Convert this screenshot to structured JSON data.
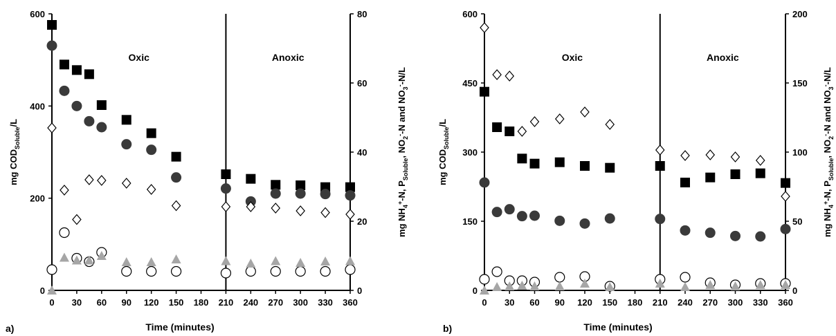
{
  "chart_data": [
    {
      "type": "scatter",
      "panel_label": "a)",
      "xlabel": "Time (minutes)",
      "ylabel_left": "mg COD_Soluble/L",
      "ylabel_right": "mg NH4+-N, P_Soluble, NO2--N and NO3--N/L",
      "xlim": [
        0,
        360
      ],
      "x_ticks": [
        0,
        30,
        60,
        90,
        120,
        150,
        180,
        210,
        240,
        270,
        300,
        330,
        360
      ],
      "ylim_left": [
        0,
        600
      ],
      "y_ticks_left": [
        0,
        200,
        400,
        600
      ],
      "ylim_right": [
        0,
        80
      ],
      "y_ticks_right": [
        0,
        20,
        40,
        60,
        80
      ],
      "phase_divider_x": 210,
      "phases": [
        {
          "label": "Oxic",
          "x": 105
        },
        {
          "label": "Anoxic",
          "x": 285
        }
      ],
      "series": [
        {
          "marker": "square",
          "axis": "left",
          "x": [
            0,
            15,
            30,
            45,
            60,
            90,
            120,
            150,
            210,
            240,
            270,
            300,
            330,
            360
          ],
          "y": [
            576,
            490,
            478,
            469,
            402,
            370,
            341,
            290,
            252,
            242,
            229,
            228,
            224,
            224
          ]
        },
        {
          "marker": "circle-filled",
          "axis": "left",
          "x": [
            0,
            15,
            30,
            45,
            60,
            90,
            120,
            150,
            210,
            240,
            270,
            300,
            330,
            360
          ],
          "y": [
            531,
            433,
            400,
            367,
            354,
            317,
            305,
            245,
            221,
            193,
            210,
            210,
            209,
            206
          ]
        },
        {
          "marker": "diamond-open",
          "axis": "right",
          "x": [
            0,
            15,
            30,
            45,
            60,
            90,
            120,
            150,
            210,
            240,
            270,
            300,
            330,
            360
          ],
          "y": [
            47,
            29,
            20.5,
            32,
            31.8,
            31,
            29.2,
            24.5,
            24.2,
            24.2,
            23.8,
            23,
            22.5,
            22
          ]
        },
        {
          "marker": "circle-open",
          "axis": "right",
          "x": [
            0,
            15,
            30,
            45,
            60,
            90,
            120,
            150,
            210,
            240,
            270,
            300,
            330,
            360
          ],
          "y": [
            6,
            16.7,
            9.3,
            8.3,
            11,
            5.5,
            5.5,
            5.5,
            5,
            5.5,
            5.5,
            5.5,
            5.5,
            6
          ]
        },
        {
          "marker": "triangle-gray",
          "axis": "right",
          "x": [
            0,
            15,
            30,
            45,
            60,
            90,
            120,
            150,
            210,
            240,
            270,
            300,
            330,
            360
          ],
          "y": [
            0,
            9.5,
            8.7,
            8.7,
            10,
            8.2,
            8.2,
            9,
            8.5,
            7.8,
            8.5,
            8,
            8.4,
            8.5
          ]
        }
      ]
    },
    {
      "type": "scatter",
      "panel_label": "b)",
      "xlabel": "Time (minutes)",
      "ylabel_left": "mg COD_Soluble/L",
      "ylabel_right": "mg NH4+-N, P_Soluble, NO2--N and NO3--N/L",
      "xlim": [
        0,
        360
      ],
      "x_ticks": [
        0,
        30,
        60,
        90,
        120,
        150,
        180,
        210,
        240,
        270,
        300,
        330,
        360
      ],
      "ylim_left": [
        0,
        600
      ],
      "y_ticks_left": [
        0,
        150,
        300,
        450,
        600
      ],
      "ylim_right": [
        0,
        200
      ],
      "y_ticks_right": [
        0,
        50,
        100,
        150,
        200
      ],
      "phase_divider_x": 210,
      "phases": [
        {
          "label": "Oxic",
          "x": 105
        },
        {
          "label": "Anoxic",
          "x": 285
        }
      ],
      "series": [
        {
          "marker": "square",
          "axis": "left",
          "x": [
            0,
            15,
            30,
            45,
            60,
            90,
            120,
            150,
            210,
            240,
            270,
            300,
            330,
            360
          ],
          "y": [
            431,
            354,
            345,
            286,
            275,
            278,
            270,
            266,
            270,
            234,
            245,
            252,
            254,
            233
          ]
        },
        {
          "marker": "circle-filled",
          "axis": "left",
          "x": [
            0,
            15,
            30,
            45,
            60,
            90,
            120,
            150,
            210,
            240,
            270,
            300,
            330,
            360
          ],
          "y": [
            234,
            170,
            176,
            161,
            162,
            151,
            145,
            156,
            155,
            130,
            125,
            118,
            117,
            133
          ]
        },
        {
          "marker": "diamond-open",
          "axis": "right",
          "x": [
            0,
            15,
            30,
            45,
            60,
            90,
            120,
            150,
            210,
            240,
            270,
            300,
            330,
            360
          ],
          "y": [
            190,
            156,
            155,
            115,
            122,
            124,
            129,
            120,
            101.5,
            97.5,
            98,
            96.5,
            94,
            68
          ]
        },
        {
          "marker": "circle-open",
          "axis": "right",
          "x": [
            0,
            15,
            30,
            45,
            60,
            90,
            120,
            150,
            210,
            240,
            270,
            300,
            330,
            360
          ],
          "y": [
            8,
            13.5,
            7,
            7,
            6,
            9.5,
            10,
            3,
            8,
            9.5,
            5.5,
            4,
            5,
            5
          ]
        },
        {
          "marker": "triangle-gray",
          "axis": "right",
          "x": [
            0,
            15,
            30,
            45,
            60,
            90,
            120,
            150,
            210,
            240,
            270,
            300,
            330,
            360
          ],
          "y": [
            0,
            2.5,
            3,
            3.5,
            3,
            3,
            5,
            2.5,
            5,
            2.5,
            4,
            3,
            4,
            4
          ]
        }
      ]
    }
  ]
}
